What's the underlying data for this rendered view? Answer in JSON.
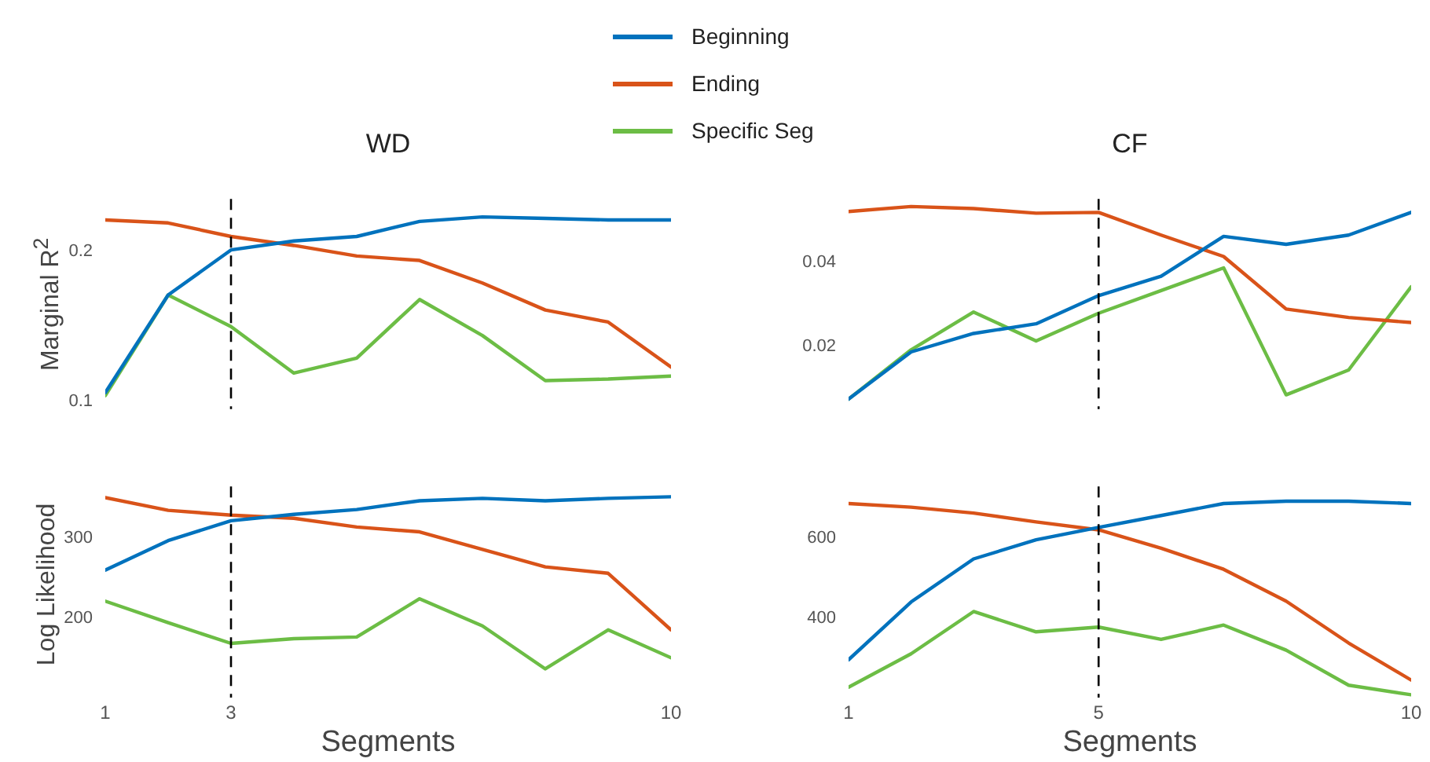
{
  "chart_data": [
    {
      "type": "line",
      "title": "WD",
      "ylabel": "Marginal R$^{2}$",
      "x": [
        1,
        2,
        3,
        4,
        5,
        6,
        7,
        8,
        9,
        10
      ],
      "xlim": [
        1,
        10
      ],
      "xticks": [
        1,
        3,
        10
      ],
      "ylim": [
        0.095,
        0.235
      ],
      "yticks": [
        0.1,
        0.2
      ],
      "tick_labels": "y",
      "grid": false,
      "legend": "top",
      "marker": "none",
      "line_style": "solid",
      "ref_lines": [
        {
          "axis": "x",
          "value": 3,
          "color": "#000000",
          "line_style": "dashed"
        }
      ],
      "series": [
        {
          "name": "Beginning",
          "color": "#0072bd",
          "values": [
            0.106,
            0.171,
            0.201,
            0.207,
            0.21,
            0.22,
            0.223,
            0.222,
            0.221,
            0.221
          ]
        },
        {
          "name": "Ending",
          "color": "#d95319",
          "values": [
            0.221,
            0.219,
            0.21,
            0.204,
            0.197,
            0.194,
            0.179,
            0.161,
            0.153,
            0.123
          ]
        },
        {
          "name": "Specific Seg",
          "color": "#6cbd45",
          "values": [
            0.104,
            0.171,
            0.15,
            0.119,
            0.129,
            0.168,
            0.144,
            0.114,
            0.115,
            0.117
          ]
        }
      ]
    },
    {
      "type": "line",
      "title": "CF",
      "x": [
        1,
        2,
        3,
        4,
        5,
        6,
        7,
        8,
        9,
        10
      ],
      "xlim": [
        1,
        10
      ],
      "xticks": [
        1,
        5,
        10
      ],
      "ylim": [
        0.005,
        0.055
      ],
      "yticks": [
        0.02,
        0.04
      ],
      "tick_labels": "y",
      "grid": false,
      "marker": "none",
      "line_style": "solid",
      "ref_lines": [
        {
          "axis": "x",
          "value": 5,
          "color": "#000000",
          "line_style": "dashed"
        }
      ],
      "series": [
        {
          "color": "#0072bd",
          "values": [
            0.0074,
            0.0186,
            0.023,
            0.0253,
            0.032,
            0.0366,
            0.0461,
            0.0442,
            0.0464,
            0.0518
          ]
        },
        {
          "color": "#d95319",
          "values": [
            0.052,
            0.0532,
            0.0527,
            0.0516,
            0.0518,
            0.0464,
            0.0413,
            0.0288,
            0.0268,
            0.0256
          ]
        },
        {
          "color": "#6cbd45",
          "values": [
            0.0074,
            0.0191,
            0.0281,
            0.0212,
            0.0278,
            0.0332,
            0.0386,
            0.0084,
            0.0143,
            0.0341
          ]
        }
      ]
    },
    {
      "type": "line",
      "xlabel": "Segments",
      "ylabel": "Log Likelihood",
      "x": [
        1,
        2,
        3,
        4,
        5,
        6,
        7,
        8,
        9,
        10
      ],
      "xlim": [
        1,
        10
      ],
      "xticks": [
        1,
        3,
        10
      ],
      "ylim": [
        100,
        365
      ],
      "yticks": [
        200,
        300
      ],
      "grid": false,
      "marker": "none",
      "line_style": "solid",
      "ref_lines": [
        {
          "axis": "x",
          "value": 3,
          "color": "#000000",
          "line_style": "dashed"
        }
      ],
      "series": [
        {
          "color": "#0072bd",
          "values": [
            260,
            297,
            322,
            330,
            336,
            347,
            350,
            347,
            350,
            352
          ]
        },
        {
          "color": "#d95319",
          "values": [
            351,
            335,
            329,
            325,
            314,
            308,
            286,
            264,
            256,
            185
          ]
        },
        {
          "color": "#6cbd45",
          "values": [
            221,
            194,
            168,
            174,
            176,
            224,
            190,
            136,
            185,
            150
          ]
        }
      ]
    },
    {
      "type": "line",
      "xlabel": "Segments",
      "x": [
        1,
        2,
        3,
        4,
        5,
        6,
        7,
        8,
        9,
        10
      ],
      "xlim": [
        1,
        10
      ],
      "xticks": [
        1,
        5,
        10
      ],
      "ylim": [
        200,
        730
      ],
      "yticks": [
        400,
        600
      ],
      "grid": false,
      "marker": "none",
      "line_style": "solid",
      "ref_lines": [
        {
          "axis": "x",
          "value": 5,
          "color": "#000000",
          "line_style": "dashed"
        }
      ],
      "series": [
        {
          "color": "#0072bd",
          "values": [
            295,
            440,
            548,
            596,
            627,
            657,
            687,
            693,
            693,
            687
          ]
        },
        {
          "color": "#d95319",
          "values": [
            687,
            678,
            663,
            641,
            621,
            575,
            522,
            442,
            337,
            244
          ]
        },
        {
          "color": "#6cbd45",
          "values": [
            226,
            310,
            416,
            365,
            377,
            346,
            382,
            319,
            231,
            207
          ]
        }
      ]
    }
  ]
}
